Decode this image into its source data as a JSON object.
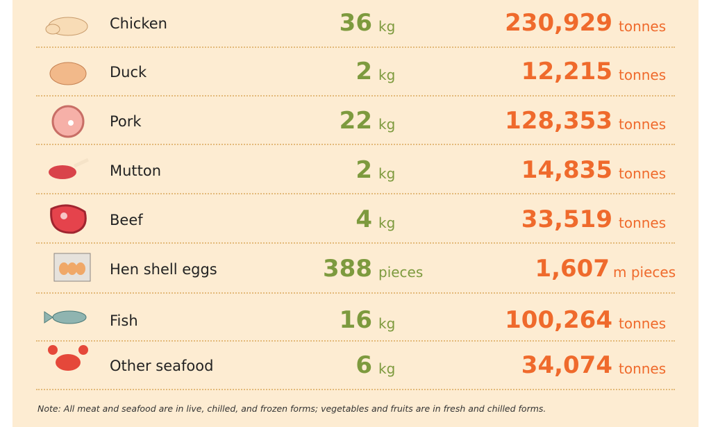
{
  "table": {
    "rows": [
      {
        "item": "Chicken",
        "per_capita": "36",
        "per_capita_unit": "kg",
        "total": "230,929",
        "total_unit": "tonnes"
      },
      {
        "item": "Duck",
        "per_capita": "2",
        "per_capita_unit": "kg",
        "total": "12,215",
        "total_unit": "tonnes"
      },
      {
        "item": "Pork",
        "per_capita": "22",
        "per_capita_unit": "kg",
        "total": "128,353",
        "total_unit": "tonnes"
      },
      {
        "item": "Mutton",
        "per_capita": "2",
        "per_capita_unit": "kg",
        "total": "14,835",
        "total_unit": "tonnes"
      },
      {
        "item": "Beef",
        "per_capita": "4",
        "per_capita_unit": "kg",
        "total": "33,519",
        "total_unit": "tonnes"
      },
      {
        "item": "Hen shell eggs",
        "per_capita": "388",
        "per_capita_unit": "pieces",
        "total": "1,607",
        "total_unit": "m pieces"
      },
      {
        "item": "Fish",
        "per_capita": "16",
        "per_capita_unit": "kg",
        "total": "100,264",
        "total_unit": "tonnes"
      },
      {
        "item": "Other seafood",
        "per_capita": "6",
        "per_capita_unit": "kg",
        "total": "34,074",
        "total_unit": "tonnes"
      }
    ]
  },
  "note": "Note: All meat and seafood are in live, chilled, and frozen forms; vegetables and fruits are in fresh and chilled forms."
}
